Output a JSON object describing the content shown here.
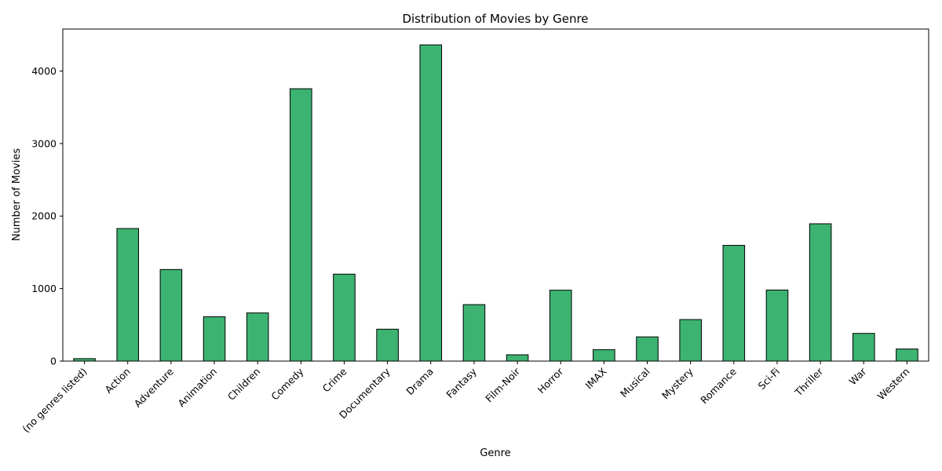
{
  "chart_data": {
    "type": "bar",
    "title": "Distribution of Movies by Genre",
    "xlabel": "Genre",
    "ylabel": "Number of Movies",
    "categories": [
      "(no genres listed)",
      "Action",
      "Adventure",
      "Animation",
      "Children",
      "Comedy",
      "Crime",
      "Documentary",
      "Drama",
      "Fantasy",
      "Film-Noir",
      "Horror",
      "IMAX",
      "Musical",
      "Mystery",
      "Romance",
      "Sci-Fi",
      "Thriller",
      "War",
      "Western"
    ],
    "values": [
      34,
      1828,
      1263,
      611,
      664,
      3756,
      1199,
      440,
      4361,
      779,
      87,
      978,
      158,
      334,
      573,
      1596,
      980,
      1894,
      382,
      167
    ],
    "ylim": [
      0,
      4579
    ],
    "yticks": [
      0,
      1000,
      2000,
      3000,
      4000
    ],
    "grid": false,
    "legend": "none",
    "bar_color": "#3cb371",
    "edge_color": "#000000"
  }
}
